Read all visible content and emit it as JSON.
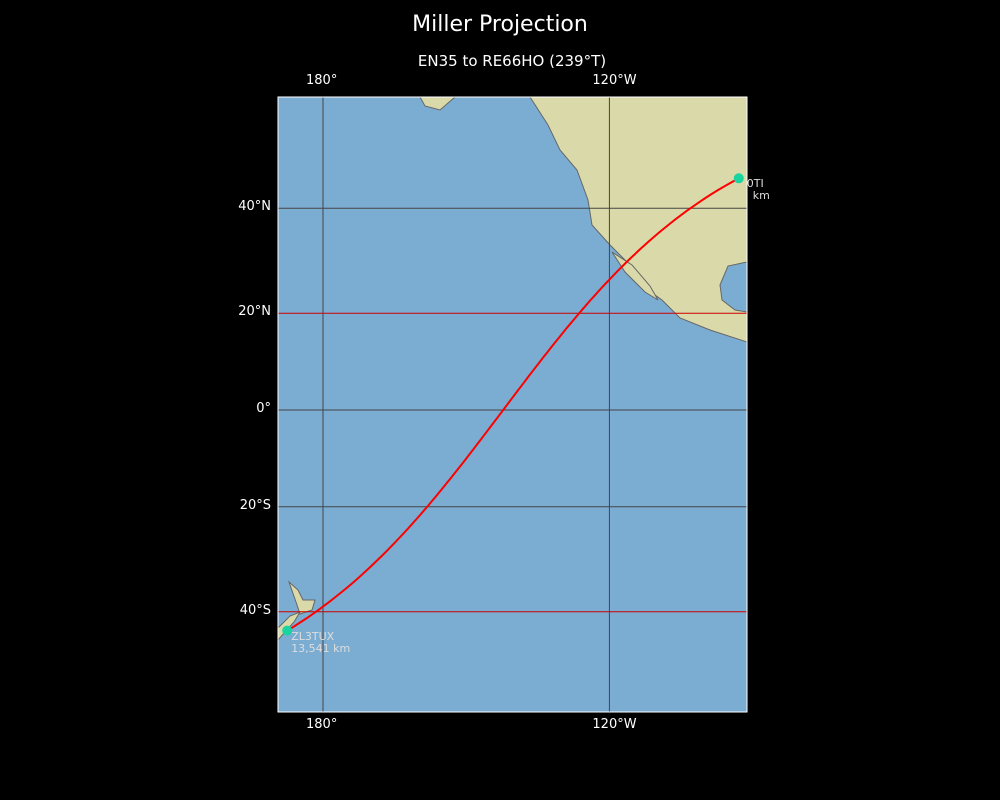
{
  "title": "Miller Projection",
  "subtitle": "EN35 to RE66HO (239°T)",
  "projection": "Miller",
  "map_extent": {
    "lon": [
      170.6,
      -91.1
    ],
    "lat": [
      -58,
      62
    ]
  },
  "lon_ticks": [
    {
      "lon": 180,
      "label": "180°"
    },
    {
      "lon": -120,
      "label": "120°W"
    }
  ],
  "lat_ticks": [
    {
      "lat": 40,
      "label": "40°N"
    },
    {
      "lat": 20,
      "label": "20°N"
    },
    {
      "lat": 0,
      "label": "0°"
    },
    {
      "lat": -20,
      "label": "20°S"
    },
    {
      "lat": -40,
      "label": "40°S"
    }
  ],
  "highlight_lats": [
    20,
    -40
  ],
  "path": {
    "from": {
      "lat": 45.2,
      "lon": -92.9
    },
    "to": {
      "lat": -43.3,
      "lon": 172.5
    },
    "color": "#ff0000"
  },
  "stations": [
    {
      "name": "0TI",
      "dist": "km",
      "lat": 45.2,
      "lon": -92.9
    },
    {
      "name": "ZL3TUX",
      "dist": "13,541 km",
      "lat": -43.3,
      "lon": 172.5
    }
  ],
  "colors": {
    "ocean": "#7badd3",
    "land": "#d9d9aa",
    "marker": "#19d3a0",
    "grid": "#444444",
    "highlight": "#cc0000"
  }
}
